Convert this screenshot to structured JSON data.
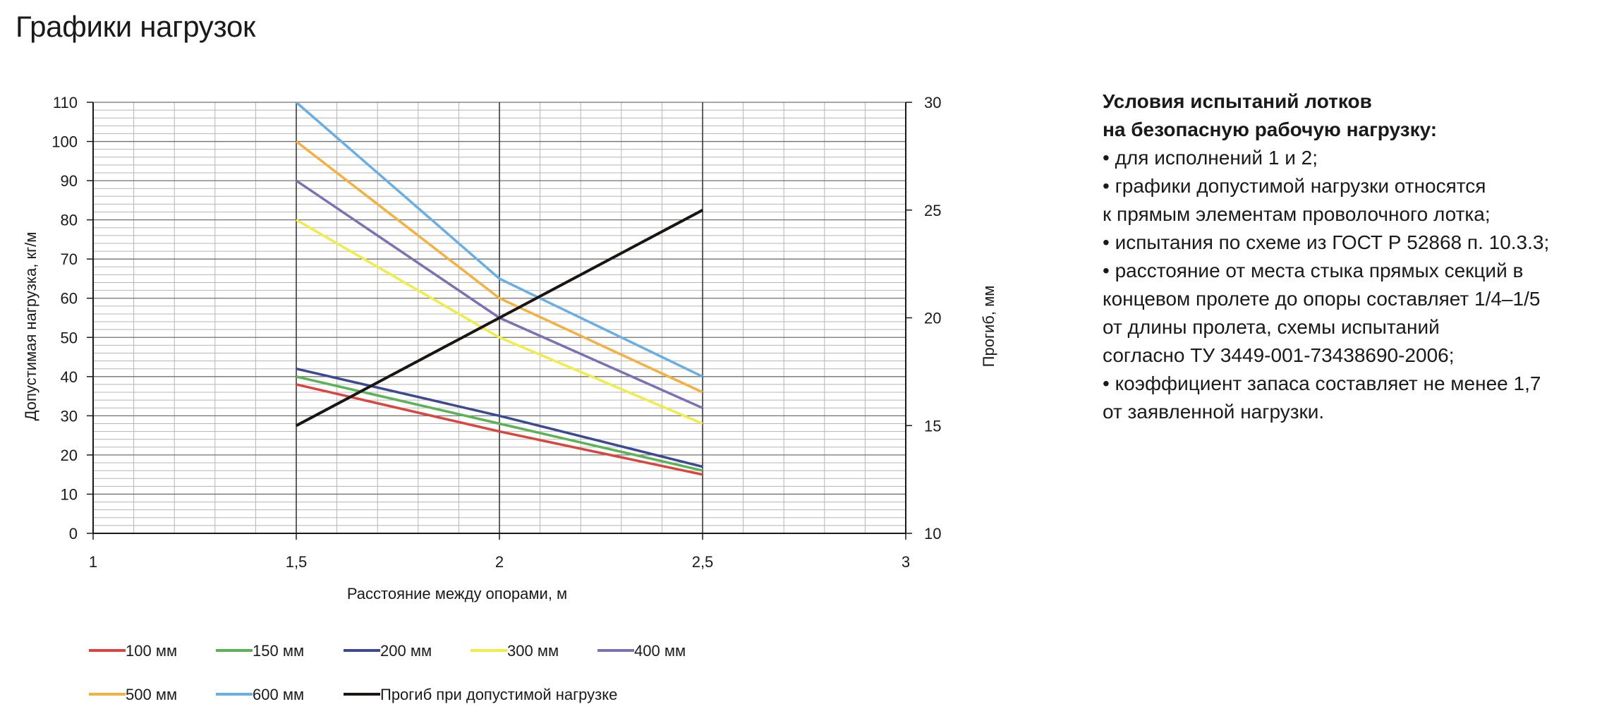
{
  "page": {
    "title": "Графики нагрузок"
  },
  "notes": {
    "title": "Условия испытаний лотков\nна безопасную рабочую нагрузку:",
    "lines": [
      "• для исполнений 1 и 2;",
      "• графики допустимой нагрузки относятся",
      "к прямым элементам проволочного лотка;",
      "• испытания по схеме из ГОСТ Р 52868 п. 10.3.3;",
      "• расстояние от места стыка прямых секций в",
      "концевом пролете до опоры составляет 1/4–1/5",
      "от длины пролета, схемы испытаний",
      "согласно ТУ 3449-001-73438690-2006;",
      "• коэффициент запаса составляет не менее 1,7",
      "от заявленной нагрузки."
    ]
  },
  "chart_data": {
    "type": "line",
    "title": "",
    "xlabel": "Расстояние между опорами, м",
    "ylabel": "Допустимая нагрузка,  кг/м",
    "y2label": "Прогиб, мм",
    "xlim": [
      1,
      3
    ],
    "ylim": [
      0,
      110
    ],
    "y2lim": [
      10,
      30
    ],
    "x_ticks": [
      1,
      1.5,
      2,
      2.5,
      3
    ],
    "x_tick_labels": [
      "1",
      "1,5",
      "2",
      "2,5",
      "3"
    ],
    "y_ticks": [
      0,
      10,
      20,
      30,
      40,
      50,
      60,
      70,
      80,
      90,
      100,
      110
    ],
    "y2_ticks": [
      10,
      15,
      20,
      25,
      30
    ],
    "grid": true,
    "legend_position": "bottom",
    "x": [
      1.5,
      2,
      2.5
    ],
    "series": [
      {
        "name": "100 мм",
        "color": "#d9453f",
        "axis": "left",
        "values": [
          38,
          26,
          15
        ]
      },
      {
        "name": "150 мм",
        "color": "#5bb257",
        "axis": "left",
        "values": [
          40,
          28,
          16
        ]
      },
      {
        "name": "200 мм",
        "color": "#3d4a8f",
        "axis": "left",
        "values": [
          42,
          30,
          17
        ]
      },
      {
        "name": "300 мм",
        "color": "#f0ec4a",
        "axis": "left",
        "values": [
          80,
          50,
          28
        ]
      },
      {
        "name": "400 мм",
        "color": "#7e70b3",
        "axis": "left",
        "values": [
          90,
          55,
          32
        ]
      },
      {
        "name": "500 мм",
        "color": "#f2b142",
        "axis": "left",
        "values": [
          100,
          60,
          36
        ]
      },
      {
        "name": "600 мм",
        "color": "#6aaee2",
        "axis": "left",
        "values": [
          110,
          65,
          40
        ]
      },
      {
        "name": "Прогиб при допустимой нагрузке",
        "color": "#1a1512",
        "axis": "right",
        "values": [
          15,
          20,
          25
        ]
      }
    ]
  }
}
